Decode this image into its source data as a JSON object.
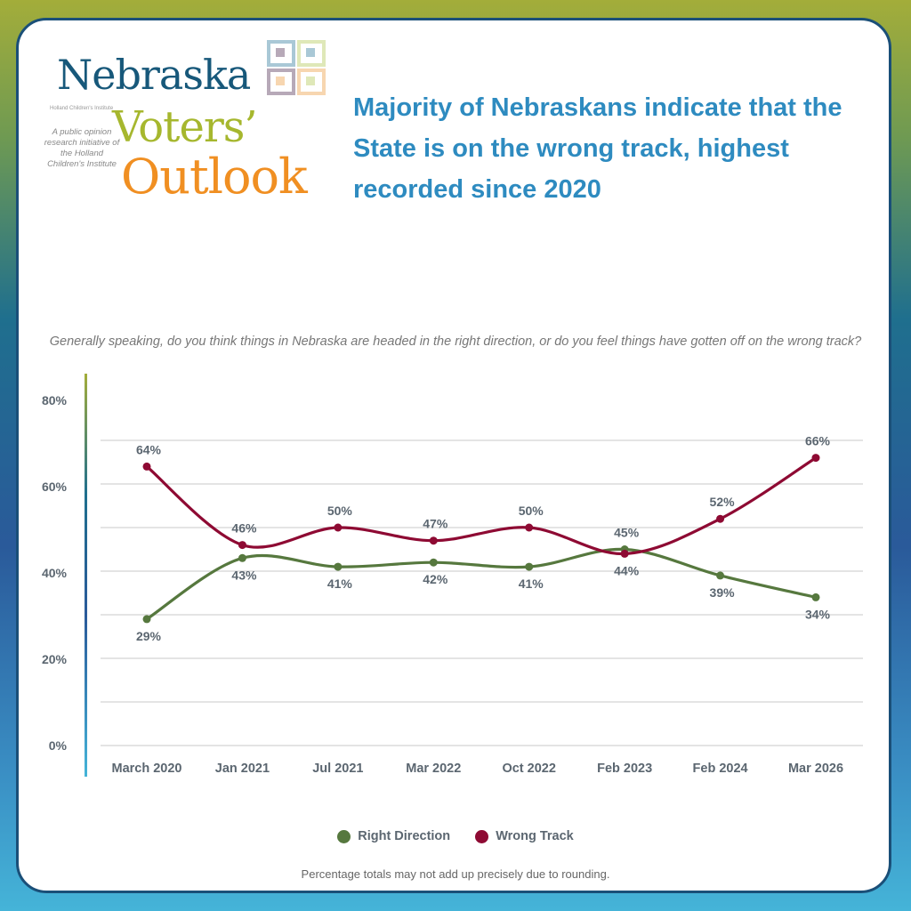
{
  "logo": {
    "line1": "Nebraska",
    "line2": "Voters’",
    "line3": "Outlook",
    "partner": "Holland Children's Institute",
    "tagline": "A public opinion research initiative of the Holland Children's Institute",
    "colors": {
      "nebraska": "#17587a",
      "voters": "#a6b72e",
      "outlook": "#f08f22"
    }
  },
  "headline": "Majority of Nebraskans indicate that the State is on the wrong track, highest recorded since 2020",
  "chart_data": {
    "type": "line",
    "title": "Generally speaking, do you think things in Nebraska are headed in the right direction, or do you feel things have gotten off on the wrong track?",
    "categories": [
      "March 2020",
      "Jan 2021",
      "Jul 2021",
      "Mar 2022",
      "Oct 2022",
      "Feb 2023",
      "Feb 2024",
      "Mar 2026"
    ],
    "y_tick_labels": [
      "0%",
      "20%",
      "40%",
      "60%",
      "80%"
    ],
    "ylim": [
      0,
      70
    ],
    "gridlines": [
      0,
      10,
      20,
      30,
      40,
      50,
      60,
      70
    ],
    "grid": true,
    "smooth": true,
    "legend_placement": "bottom",
    "series": [
      {
        "name": "Right Direction",
        "color": "#56783e",
        "values": [
          29,
          43,
          41,
          42,
          41,
          45,
          39,
          34
        ]
      },
      {
        "name": "Wrong Track",
        "color": "#8e0a33",
        "values": [
          64,
          46,
          50,
          47,
          50,
          44,
          52,
          66
        ]
      }
    ]
  },
  "footnote": "Percentage totals may not add up precisely due to rounding."
}
